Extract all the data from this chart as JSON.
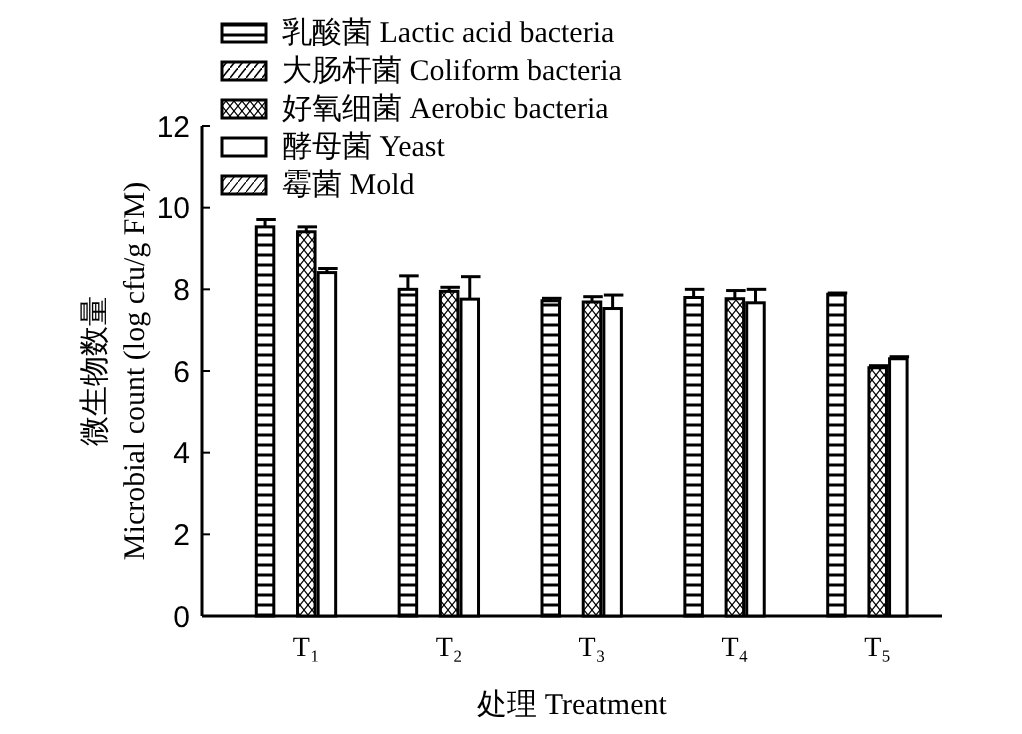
{
  "chart_data": {
    "type": "bar",
    "xlabel": "处理 Treatment",
    "ylabel": "微生物数量\nMicrobial count (log cfu/g FM)",
    "categories": [
      "T₁",
      "T₂",
      "T₃",
      "T₄",
      "T₅"
    ],
    "series": [
      {
        "name": "乳酸菌 Lactic acid bacteria",
        "color": "#000000",
        "values": [
          9.53,
          8.0,
          7.72,
          7.8,
          7.88
        ],
        "errors": [
          0.18,
          0.33,
          0.06,
          0.2,
          0.03
        ]
      },
      {
        "name": "大肠杆菌 Coliform bacteria",
        "color": "#000000",
        "values": [
          null,
          null,
          null,
          null,
          null
        ]
      },
      {
        "name": "好氧细菌 Aerobic bacteria",
        "color": "#000000",
        "values": [
          9.41,
          7.95,
          7.69,
          7.77,
          6.08
        ],
        "errors": [
          0.12,
          0.1,
          0.13,
          0.2,
          0.05
        ]
      },
      {
        "name": "酵母菌 Yeast",
        "color": "#000000",
        "values": [
          8.41,
          7.76,
          7.53,
          7.67,
          6.3
        ],
        "errors": [
          0.1,
          0.55,
          0.33,
          0.33,
          0.05
        ]
      },
      {
        "name": "霉菌 Mold",
        "color": "#000000",
        "values": [
          null,
          null,
          null,
          null,
          null
        ]
      }
    ],
    "ylim": [
      0,
      12
    ],
    "yticks": [
      0,
      2,
      4,
      6,
      8,
      10,
      12
    ],
    "legend": "top left",
    "grid": false
  }
}
